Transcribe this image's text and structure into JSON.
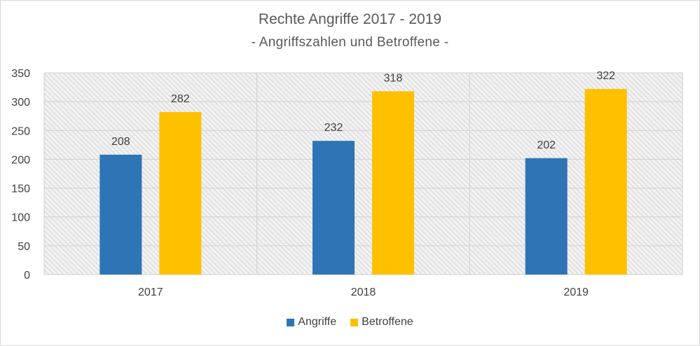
{
  "chart_data": {
    "type": "bar",
    "title": "Rechte Angriffe 2017 - 2019",
    "subtitle": "- Angriffszahlen und Betroffene -",
    "categories": [
      "2017",
      "2018",
      "2019"
    ],
    "series": [
      {
        "name": "Angriffe",
        "values": [
          208,
          232,
          202
        ],
        "color": "#2e75b6"
      },
      {
        "name": "Betroffene",
        "values": [
          282,
          318,
          322
        ],
        "color": "#ffc000"
      }
    ],
    "ylim": [
      0,
      350
    ],
    "yticks": [
      "0",
      "50",
      "100",
      "150",
      "200",
      "250",
      "300",
      "350"
    ],
    "data_labels": true,
    "grid": true,
    "legend_position": "bottom"
  }
}
